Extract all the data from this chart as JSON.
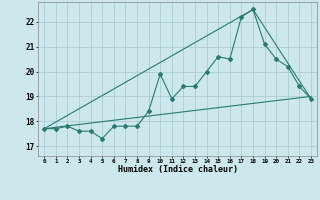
{
  "title": "",
  "xlabel": "Humidex (Indice chaleur)",
  "bg_color": "#cce8ec",
  "grid_color": "#aacdd4",
  "line_color": "#2a7a72",
  "x_ticks": [
    0,
    1,
    2,
    3,
    4,
    5,
    6,
    7,
    8,
    9,
    10,
    11,
    12,
    13,
    14,
    15,
    16,
    17,
    18,
    19,
    20,
    21,
    22,
    23
  ],
  "y_ticks": [
    17,
    18,
    19,
    20,
    21,
    22
  ],
  "ylim": [
    16.6,
    22.8
  ],
  "xlim": [
    -0.5,
    23.5
  ],
  "series1": {
    "x": [
      0,
      1,
      2,
      3,
      4,
      5,
      6,
      7,
      8,
      9,
      10,
      11,
      12,
      13,
      14,
      15,
      16,
      17,
      18,
      19,
      20,
      21,
      22,
      23
    ],
    "y": [
      17.7,
      17.7,
      17.8,
      17.6,
      17.6,
      17.3,
      17.8,
      17.8,
      17.8,
      18.4,
      19.9,
      18.9,
      19.4,
      19.4,
      20.0,
      20.6,
      20.5,
      22.2,
      22.5,
      21.1,
      20.5,
      20.2,
      19.4,
      18.9
    ]
  },
  "series2_x": [
    0,
    18,
    23
  ],
  "series2_y": [
    17.7,
    22.5,
    18.9
  ],
  "series3_x": [
    0,
    23
  ],
  "series3_y": [
    17.7,
    19.0
  ]
}
